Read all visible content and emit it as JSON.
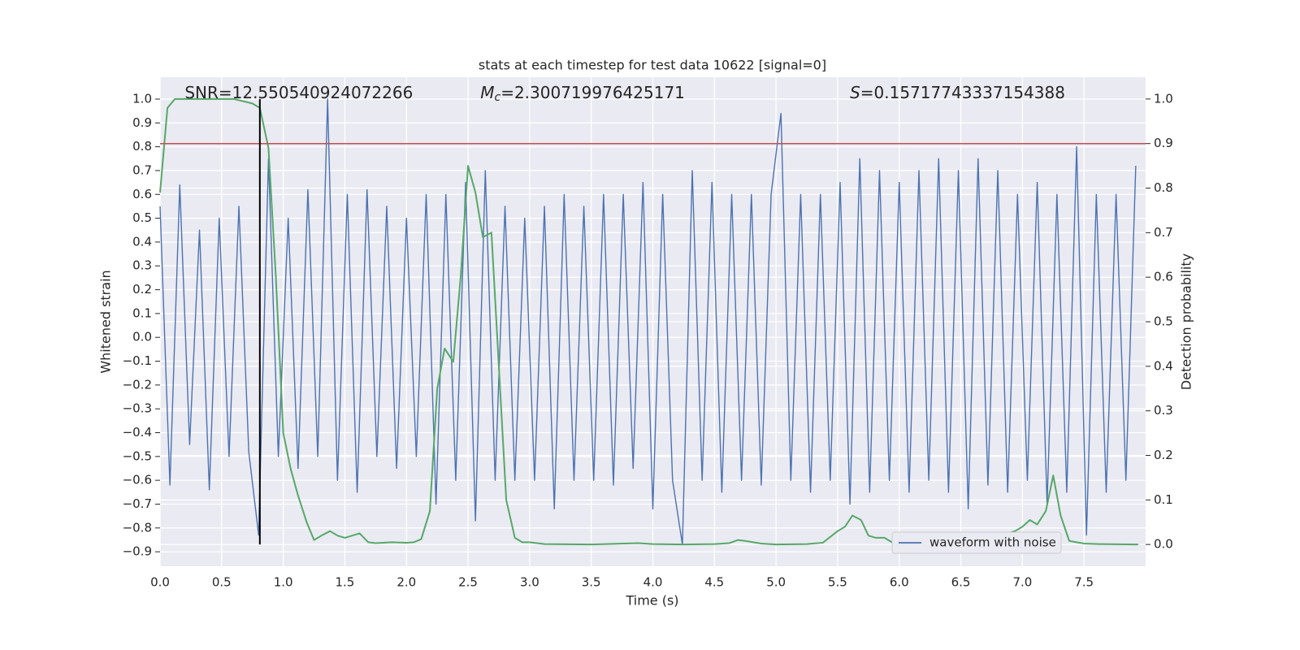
{
  "chart_data": {
    "type": "line",
    "title": "stats at each timestep for test data 10622 [signal=0]",
    "xlabel": "Time (s)",
    "ylabel": "Whitened strain",
    "y2label": "Detection probability",
    "annotations": [
      {
        "text": "SNR=12.550540924072266",
        "x": 0.2
      },
      {
        "symbol": "M",
        "subscript": "c",
        "text": "=2.300719976425171",
        "x": 2.6
      },
      {
        "symbol": "S",
        "text": "=0.15717743337154388",
        "x": 5.6
      }
    ],
    "xlim": [
      0,
      8.0
    ],
    "ylim": [
      -0.961,
      1.092
    ],
    "y2lim": [
      -0.049,
      1.049
    ],
    "xticks": [
      {
        "value": 0,
        "label": "0.0"
      },
      0.5,
      {
        "value": 1,
        "label": "1.0"
      },
      1.5,
      {
        "value": 2,
        "label": "2.0"
      },
      2.5,
      {
        "value": 3,
        "label": "3.0"
      },
      3.5,
      {
        "value": 4,
        "label": "4.0"
      },
      4.5,
      {
        "value": 5,
        "label": "5.0"
      },
      5.5,
      {
        "value": 6,
        "label": "6.0"
      },
      6.5,
      {
        "value": 7,
        "label": "7.0"
      },
      7.5
    ],
    "yticks": [
      {
        "value": -0.9,
        "label": "−0.9"
      },
      {
        "value": -0.8,
        "label": "−0.8"
      },
      {
        "value": -0.7,
        "label": "−0.7"
      },
      {
        "value": -0.6,
        "label": "−0.6"
      },
      {
        "value": -0.5,
        "label": "−0.5"
      },
      {
        "value": -0.4,
        "label": "−0.4"
      },
      {
        "value": -0.3,
        "label": "−0.3"
      },
      {
        "value": -0.2,
        "label": "−0.2"
      },
      {
        "value": -0.1,
        "label": "−0.1"
      },
      {
        "value": 0,
        "label": "0.0"
      },
      0.1,
      0.2,
      0.3,
      0.4,
      0.5,
      0.6,
      0.7,
      0.8,
      0.9,
      {
        "value": 1,
        "label": "1.0"
      }
    ],
    "y2ticks": [
      {
        "value": 0,
        "label": "0.0"
      },
      0.1,
      0.2,
      0.3,
      0.4,
      0.5,
      0.6,
      0.7,
      0.8,
      0.9,
      {
        "value": 1,
        "label": "1.0"
      }
    ],
    "grid": true,
    "legend": "lower right",
    "series": [
      {
        "name": "waveform with noise",
        "color": "#4c72b0",
        "axis": "y",
        "x": [
          0,
          0.08,
          0.16,
          0.24,
          0.32,
          0.4,
          0.48,
          0.56,
          0.64,
          0.72,
          0.8,
          0.88,
          0.96,
          1.04,
          1.12,
          1.2,
          1.28,
          1.36,
          1.44,
          1.52,
          1.6,
          1.68,
          1.76,
          1.84,
          1.92,
          2.0,
          2.08,
          2.16,
          2.24,
          2.32,
          2.4,
          2.48,
          2.56,
          2.64,
          2.72,
          2.8,
          2.88,
          2.96,
          3.04,
          3.12,
          3.2,
          3.28,
          3.36,
          3.44,
          3.52,
          3.6,
          3.68,
          3.76,
          3.84,
          3.92,
          4.0,
          4.08,
          4.16,
          4.24,
          4.32,
          4.4,
          4.48,
          4.56,
          4.64,
          4.72,
          4.8,
          4.88,
          4.96,
          5.04,
          5.12,
          5.2,
          5.28,
          5.36,
          5.44,
          5.52,
          5.6,
          5.68,
          5.76,
          5.84,
          5.92,
          6.0,
          6.08,
          6.16,
          6.24,
          6.32,
          6.4,
          6.48,
          6.56,
          6.64,
          6.72,
          6.8,
          6.88,
          6.96,
          7.04,
          7.12,
          7.2,
          7.28,
          7.36,
          7.44,
          7.52,
          7.6,
          7.68,
          7.76,
          7.84,
          7.92
        ],
        "values": [
          0.55,
          -0.62,
          0.64,
          -0.45,
          0.45,
          -0.64,
          0.5,
          -0.5,
          0.55,
          -0.48,
          -0.83,
          0.75,
          -0.5,
          0.5,
          -0.55,
          0.62,
          -0.5,
          1.0,
          -0.6,
          0.6,
          -0.65,
          0.62,
          -0.5,
          0.55,
          -0.55,
          0.5,
          -0.5,
          0.6,
          -0.7,
          0.6,
          -0.6,
          0.65,
          -0.77,
          0.7,
          -0.6,
          0.55,
          -0.6,
          0.5,
          -0.6,
          0.55,
          -0.72,
          0.6,
          -0.6,
          0.55,
          -0.6,
          0.6,
          -0.62,
          0.6,
          -0.55,
          0.65,
          -0.72,
          0.6,
          -0.6,
          -0.87,
          0.7,
          -0.6,
          0.65,
          -0.65,
          0.6,
          -0.6,
          0.6,
          -0.62,
          0.6,
          0.94,
          -0.6,
          0.6,
          -0.65,
          0.6,
          -0.6,
          0.65,
          -0.7,
          0.75,
          -0.65,
          0.7,
          -0.6,
          0.65,
          -0.65,
          0.7,
          -0.6,
          0.75,
          -0.65,
          0.7,
          -0.72,
          0.75,
          -0.62,
          0.7,
          -0.65,
          0.6,
          -0.6,
          0.65,
          -0.7,
          0.6,
          -0.65,
          0.8,
          -0.83,
          0.6,
          -0.65,
          0.6,
          -0.6,
          0.72
        ]
      },
      {
        "color": "#55a868",
        "axis": "y2",
        "x": [
          0,
          0.06,
          0.12,
          0.3,
          0.6,
          0.75,
          0.81,
          0.88,
          0.94,
          1.0,
          1.06,
          1.12,
          1.19,
          1.25,
          1.31,
          1.38,
          1.44,
          1.5,
          1.62,
          1.69,
          1.75,
          1.88,
          2.0,
          2.06,
          2.12,
          2.19,
          2.25,
          2.31,
          2.38,
          2.44,
          2.5,
          2.56,
          2.62,
          2.69,
          2.75,
          2.81,
          2.88,
          2.94,
          3.0,
          3.12,
          3.5,
          3.88,
          4.0,
          4.25,
          4.5,
          4.62,
          4.69,
          4.75,
          4.88,
          5.0,
          5.25,
          5.38,
          5.5,
          5.56,
          5.62,
          5.69,
          5.75,
          5.81,
          5.88,
          5.94,
          6.0,
          6.12,
          6.25,
          6.5,
          6.69,
          6.75,
          6.88,
          6.94,
          7.0,
          7.06,
          7.12,
          7.19,
          7.25,
          7.31,
          7.38,
          7.5,
          7.62,
          7.94
        ],
        "values": [
          0.79,
          0.98,
          1.0,
          1.0,
          1.0,
          0.99,
          0.98,
          0.89,
          0.6,
          0.25,
          0.17,
          0.11,
          0.05,
          0.01,
          0.02,
          0.03,
          0.02,
          0.015,
          0.025,
          0.005,
          0.003,
          0.005,
          0.004,
          0.005,
          0.012,
          0.075,
          0.35,
          0.44,
          0.41,
          0.6,
          0.85,
          0.79,
          0.69,
          0.7,
          0.4,
          0.1,
          0.015,
          0.005,
          0.005,
          0.001,
          0.0,
          0.003,
          0.001,
          0.0,
          0.001,
          0.003,
          0.01,
          0.008,
          0.002,
          0.0,
          0.001,
          0.004,
          0.03,
          0.04,
          0.065,
          0.055,
          0.02,
          0.015,
          0.015,
          0.005,
          0.001,
          0.005,
          0.002,
          0.001,
          0.005,
          0.02,
          0.025,
          0.03,
          0.04,
          0.055,
          0.045,
          0.075,
          0.155,
          0.065,
          0.008,
          0.002,
          0.001,
          0.0
        ]
      }
    ],
    "hline": {
      "axis": "y2",
      "value": 0.9,
      "color": "#c44e52"
    },
    "vline": {
      "x": 0.81,
      "y2range": [
        0,
        1
      ],
      "color": "#000000"
    },
    "background": "#eaeaf2"
  }
}
